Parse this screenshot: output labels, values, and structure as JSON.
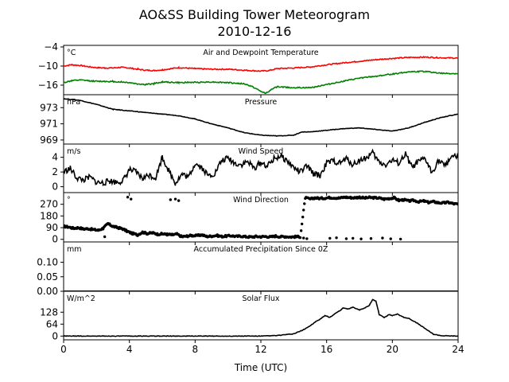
{
  "title": "AO&SS Building Tower Meteorogram",
  "subtitle": "2010-12-16",
  "xlabel": "Time (UTC)",
  "x_ticks": [
    "0",
    "4",
    "8",
    "12",
    "16",
    "20",
    "24"
  ],
  "chart_data": [
    {
      "type": "line",
      "title": "Air and Dewpoint Temperature",
      "unit": "°C",
      "ylim": [
        -19,
        -3.5
      ],
      "y_ticks": [
        -4,
        -10,
        -16
      ],
      "colors": {
        "air": "#ff0000",
        "dewpoint": "#008000"
      },
      "series": [
        {
          "key": "air",
          "x": [
            0,
            0.5,
            1,
            1.5,
            2,
            2.5,
            3,
            3.5,
            4,
            4.5,
            5,
            5.5,
            6,
            7,
            8,
            9,
            10,
            11,
            12,
            12.5,
            13,
            14,
            15,
            16,
            17,
            18,
            19,
            20,
            21,
            22,
            23,
            24
          ],
          "values": [
            -10,
            -9.6,
            -9.8,
            -10.2,
            -10.5,
            -10.6,
            -10.6,
            -10.4,
            -10.6,
            -11,
            -11.3,
            -11.4,
            -11.2,
            -10.5,
            -10.8,
            -11,
            -11,
            -11.3,
            -11.6,
            -11.4,
            -10.8,
            -10.6,
            -10.3,
            -9.6,
            -9,
            -8.5,
            -8,
            -7.6,
            -7.3,
            -7.2,
            -7.4,
            -7.5
          ]
        },
        {
          "key": "dewpoint",
          "x": [
            0,
            0.5,
            1,
            1.5,
            2,
            2.5,
            3,
            3.5,
            4,
            4.5,
            5,
            5.5,
            6,
            7,
            8,
            9,
            10,
            11,
            11.5,
            12,
            12.3,
            12.7,
            13,
            14,
            15,
            16,
            17,
            18,
            19,
            20,
            21,
            22,
            23,
            24
          ],
          "values": [
            -15.2,
            -14.6,
            -14.4,
            -14.6,
            -14.8,
            -14.8,
            -14.9,
            -15,
            -15.2,
            -15.6,
            -15.8,
            -15.5,
            -15,
            -15.2,
            -15.1,
            -15,
            -15.2,
            -15.6,
            -16.5,
            -18,
            -18.5,
            -17.2,
            -16.5,
            -16.8,
            -16.8,
            -15.8,
            -14.8,
            -13.8,
            -13.2,
            -12.5,
            -11.8,
            -11.7,
            -12.3,
            -12.4
          ]
        }
      ]
    },
    {
      "type": "line",
      "title": "Pressure",
      "unit": "hPa",
      "ylim": [
        968.5,
        974.6
      ],
      "y_ticks": [
        973,
        971,
        969
      ],
      "series": [
        {
          "x": [
            0,
            1,
            2,
            3,
            4,
            5,
            6,
            7,
            8,
            9,
            10,
            11,
            12,
            13,
            14,
            14.5,
            15,
            15.5,
            16,
            17,
            18,
            19,
            20,
            21,
            22,
            23,
            24
          ],
          "values": [
            974.1,
            973.9,
            973.4,
            972.8,
            972.6,
            972.4,
            972.2,
            972,
            971.6,
            971,
            970.5,
            969.9,
            969.6,
            969.5,
            969.6,
            970,
            970,
            970.1,
            970.2,
            970.4,
            970.5,
            970.3,
            970.1,
            970.5,
            971.2,
            971.8,
            972.2
          ]
        }
      ]
    },
    {
      "type": "line",
      "title": "Wind Speed",
      "unit": "m/s",
      "ylim": [
        -0.8,
        5.8
      ],
      "y_ticks": [
        4,
        2,
        0
      ],
      "series": [
        {
          "x": [
            0,
            0.4,
            0.8,
            1.2,
            1.6,
            2,
            2.4,
            2.8,
            3.2,
            3.6,
            4,
            4.4,
            4.8,
            5.2,
            5.6,
            6,
            6.4,
            6.8,
            7.2,
            7.6,
            8,
            8.4,
            8.8,
            9.2,
            9.6,
            10,
            10.4,
            10.8,
            11.2,
            11.6,
            12,
            12.4,
            12.8,
            13.2,
            13.6,
            14,
            14.4,
            14.8,
            15.2,
            15.6,
            16,
            16.4,
            16.8,
            17.2,
            17.6,
            18,
            18.4,
            18.8,
            19.2,
            19.6,
            20,
            20.4,
            20.8,
            21.2,
            21.6,
            22,
            22.4,
            22.8,
            23.2,
            23.6,
            24
          ],
          "values": [
            2,
            2.5,
            1.2,
            0.9,
            1.3,
            0.6,
            0.5,
            0.8,
            0.6,
            0.8,
            2.3,
            2,
            1.1,
            1.6,
            1.2,
            4,
            2.2,
            0.5,
            1.7,
            1.3,
            3.2,
            2.6,
            1.5,
            1.8,
            3.5,
            3.9,
            3.2,
            3,
            3.4,
            2.5,
            3.3,
            2.8,
            3.8,
            4.2,
            3.5,
            2.6,
            2,
            2.8,
            1.8,
            1.5,
            3.2,
            3.5,
            3.2,
            3.8,
            3,
            3.6,
            3.9,
            4.6,
            3.3,
            3,
            3.6,
            3.2,
            4.4,
            2.6,
            3.4,
            3.8,
            1.9,
            3.6,
            2.8,
            4.2,
            3.9
          ]
        }
      ]
    },
    {
      "type": "scatter",
      "title": "Wind Direction",
      "unit": "°",
      "ylim": [
        -20,
        360
      ],
      "y_ticks": [
        270,
        180,
        90,
        0
      ],
      "series": [
        {
          "x": [
            0,
            0.3,
            0.6,
            0.9,
            1.2,
            1.5,
            1.8,
            2.1,
            2.4,
            2.7,
            3,
            3.3,
            3.6,
            3.9,
            4.2,
            4.5,
            4.8,
            5.1,
            5.4,
            5.7,
            6,
            6.3,
            6.6,
            6.9,
            7.2,
            7.5,
            7.8,
            8.1,
            8.4,
            8.7,
            9,
            9.3,
            9.6,
            9.9,
            10.2,
            10.5,
            10.8,
            11.1,
            11.4,
            11.7,
            12,
            12.3,
            12.6,
            12.9,
            13.2,
            13.5,
            13.8,
            14.1,
            14.4,
            14.7,
            15,
            15.3,
            15.6,
            15.9,
            16.2,
            16.5,
            16.8,
            17.1,
            17.4,
            17.7,
            18,
            18.3,
            18.6,
            18.9,
            19.2,
            19.5,
            19.8,
            20.1,
            20.4,
            20.7,
            21,
            21.3,
            21.6,
            21.9,
            22.2,
            22.5,
            22.8,
            23.1,
            23.4,
            23.7,
            24
          ],
          "values": [
            100,
            95,
            85,
            90,
            80,
            82,
            75,
            70,
            85,
            120,
            100,
            90,
            80,
            60,
            45,
            35,
            55,
            45,
            50,
            40,
            42,
            38,
            35,
            40,
            20,
            25,
            30,
            28,
            35,
            22,
            25,
            30,
            22,
            25,
            28,
            22,
            25,
            20,
            18,
            22,
            20,
            22,
            18,
            25,
            20,
            22,
            18,
            20,
            20,
            320,
            310,
            320,
            315,
            318,
            322,
            320,
            318,
            325,
            322,
            320,
            325,
            318,
            322,
            320,
            318,
            310,
            315,
            320,
            300,
            305,
            295,
            300,
            290,
            295,
            285,
            290,
            282,
            280,
            285,
            275,
            270
          ]
        },
        {
          "x": [
            6.5,
            6.8,
            7.0,
            3.9,
            4.1,
            2.5,
            14.6,
            14.8,
            16.2,
            16.6,
            17.2,
            17.6,
            18.1,
            18.7,
            19.4,
            19.9,
            20.5
          ],
          "values": [
            305,
            310,
            298,
            325,
            310,
            20,
            10,
            5,
            8,
            12,
            5,
            8,
            3,
            6,
            10,
            4,
            2
          ]
        }
      ]
    },
    {
      "type": "line",
      "title": "Accumulated Precipitation Since 0Z",
      "unit": "mm",
      "ylim": [
        0,
        0.17
      ],
      "y_ticks": [
        0.1,
        0.05,
        0.0
      ],
      "y_tick_labels": [
        "0.10",
        "0.05",
        "0.00"
      ],
      "series": [
        {
          "x": [
            0,
            24
          ],
          "values": [
            0,
            0
          ]
        }
      ]
    },
    {
      "type": "line",
      "title": "Solar Flux",
      "unit": "W/m^2",
      "ylim": [
        -20,
        240
      ],
      "y_ticks": [
        128,
        64,
        0
      ],
      "series": [
        {
          "x": [
            0,
            12,
            13,
            14,
            14.5,
            15,
            15.3,
            15.6,
            15.9,
            16.2,
            16.5,
            16.8,
            17,
            17.3,
            17.6,
            18,
            18.3,
            18.6,
            18.8,
            19,
            19.2,
            19.5,
            19.8,
            20,
            20.3,
            20.7,
            21,
            21.5,
            22,
            22.5,
            23,
            24
          ],
          "values": [
            0,
            0,
            3,
            12,
            30,
            55,
            75,
            90,
            110,
            100,
            120,
            135,
            150,
            145,
            155,
            140,
            150,
            165,
            195,
            188,
            115,
            100,
            115,
            110,
            118,
            100,
            95,
            70,
            40,
            10,
            2,
            0
          ]
        }
      ]
    }
  ]
}
